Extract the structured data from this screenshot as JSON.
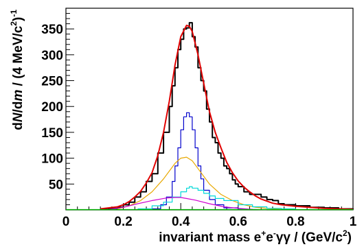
{
  "chart_data": {
    "type": "line",
    "xlabel": {
      "prefix": "invariant mass e",
      "sup1": "+",
      "mid1": "e",
      "sup2": "-",
      "mid2": "γγ / (GeV/c",
      "sup3": "2",
      "suffix": ")"
    },
    "ylabel": {
      "d1": "d",
      "N": "N",
      "slash1": "/d",
      "m": "m",
      "rest": " / (4 MeV/c",
      "sup1": "2",
      "close": ")",
      "sup2": "-1"
    },
    "xlim": [
      0,
      1
    ],
    "ylim": [
      0,
      390
    ],
    "x_ticks": [
      {
        "value": 0,
        "label": "0"
      },
      {
        "value": 0.2,
        "label": "0.2"
      },
      {
        "value": 0.4,
        "label": "0.4"
      },
      {
        "value": 0.6,
        "label": "0.6"
      },
      {
        "value": 0.8,
        "label": "0.8"
      },
      {
        "value": 1,
        "label": "1"
      }
    ],
    "y_ticks": [
      {
        "value": 50,
        "label": "50"
      },
      {
        "value": 100,
        "label": "100"
      },
      {
        "value": 150,
        "label": "150"
      },
      {
        "value": 200,
        "label": "200"
      },
      {
        "value": 250,
        "label": "250"
      },
      {
        "value": 300,
        "label": "300"
      },
      {
        "value": 350,
        "label": "350"
      }
    ],
    "grid": false,
    "colors": {
      "data": "#000000",
      "fit": "#e00000",
      "blue": "#0000cc",
      "orange": "#e8a800",
      "cyan": "#00d8d8",
      "magenta": "#d000d0",
      "green": "#00b000"
    },
    "series": [
      {
        "key": "data",
        "style": "step",
        "x": [
          0.12,
          0.15,
          0.18,
          0.2,
          0.22,
          0.24,
          0.26,
          0.28,
          0.3,
          0.32,
          0.34,
          0.36,
          0.37,
          0.38,
          0.39,
          0.4,
          0.41,
          0.42,
          0.43,
          0.44,
          0.45,
          0.46,
          0.47,
          0.48,
          0.49,
          0.5,
          0.51,
          0.52,
          0.53,
          0.54,
          0.55,
          0.56,
          0.57,
          0.58,
          0.59,
          0.6,
          0.62,
          0.64,
          0.66,
          0.68,
          0.7,
          0.72,
          0.74,
          0.76,
          0.8,
          0.85,
          0.9,
          0.95,
          1.0
        ],
        "y": [
          1,
          3,
          5,
          10,
          15,
          25,
          35,
          55,
          70,
          110,
          150,
          200,
          240,
          275,
          310,
          330,
          350,
          352,
          362,
          335,
          315,
          275,
          250,
          230,
          195,
          170,
          140,
          130,
          110,
          100,
          85,
          80,
          70,
          58,
          50,
          45,
          35,
          30,
          30,
          25,
          20,
          18,
          12,
          10,
          8,
          5,
          4,
          2,
          1
        ]
      },
      {
        "key": "fit",
        "style": "smooth",
        "x": [
          0.12,
          0.15,
          0.18,
          0.2,
          0.22,
          0.24,
          0.26,
          0.28,
          0.3,
          0.32,
          0.34,
          0.36,
          0.38,
          0.4,
          0.42,
          0.43,
          0.44,
          0.46,
          0.48,
          0.5,
          0.52,
          0.54,
          0.56,
          0.58,
          0.6,
          0.62,
          0.64,
          0.66,
          0.68,
          0.7,
          0.72,
          0.75,
          0.8,
          0.85,
          0.9,
          0.95,
          1.0
        ],
        "y": [
          2,
          4,
          6,
          10,
          16,
          25,
          36,
          52,
          72,
          105,
          150,
          210,
          280,
          335,
          357,
          355,
          345,
          300,
          245,
          190,
          150,
          120,
          92,
          72,
          56,
          44,
          35,
          27,
          21,
          17,
          13,
          10,
          7,
          5,
          3,
          2,
          1
        ]
      },
      {
        "key": "blue",
        "style": "step",
        "x": [
          0.3,
          0.33,
          0.35,
          0.37,
          0.38,
          0.39,
          0.4,
          0.41,
          0.42,
          0.43,
          0.44,
          0.45,
          0.46,
          0.47,
          0.48,
          0.5,
          0.52,
          0.55,
          0.6,
          0.65
        ],
        "y": [
          2,
          10,
          25,
          55,
          85,
          120,
          155,
          180,
          188,
          180,
          155,
          120,
          85,
          60,
          38,
          20,
          10,
          4,
          1,
          0
        ]
      },
      {
        "key": "orange",
        "style": "smooth",
        "x": [
          0.18,
          0.22,
          0.26,
          0.3,
          0.34,
          0.38,
          0.4,
          0.42,
          0.44,
          0.46,
          0.48,
          0.5,
          0.54,
          0.58,
          0.62,
          0.66,
          0.7,
          0.75
        ],
        "y": [
          2,
          8,
          18,
          35,
          60,
          90,
          100,
          102,
          95,
          80,
          65,
          50,
          30,
          18,
          10,
          5,
          3,
          1
        ]
      },
      {
        "key": "cyan",
        "style": "step",
        "x": [
          0.25,
          0.3,
          0.34,
          0.37,
          0.4,
          0.42,
          0.43,
          0.44,
          0.46,
          0.48,
          0.5,
          0.52,
          0.55,
          0.6,
          0.65,
          0.7,
          0.75,
          0.8
        ],
        "y": [
          2,
          8,
          15,
          25,
          35,
          42,
          45,
          42,
          38,
          32,
          27,
          22,
          18,
          10,
          6,
          3,
          2,
          1
        ]
      },
      {
        "key": "magenta",
        "style": "smooth",
        "x": [
          0.15,
          0.2,
          0.25,
          0.3,
          0.35,
          0.38,
          0.4,
          0.42,
          0.45,
          0.5,
          0.55,
          0.6,
          0.65,
          0.7
        ],
        "y": [
          1,
          5,
          12,
          18,
          23,
          24,
          24,
          22,
          19,
          12,
          6,
          3,
          1,
          0
        ]
      },
      {
        "key": "green",
        "style": "smooth",
        "x": [
          0.0,
          1.0
        ],
        "y": [
          0.5,
          0.5
        ]
      }
    ]
  }
}
